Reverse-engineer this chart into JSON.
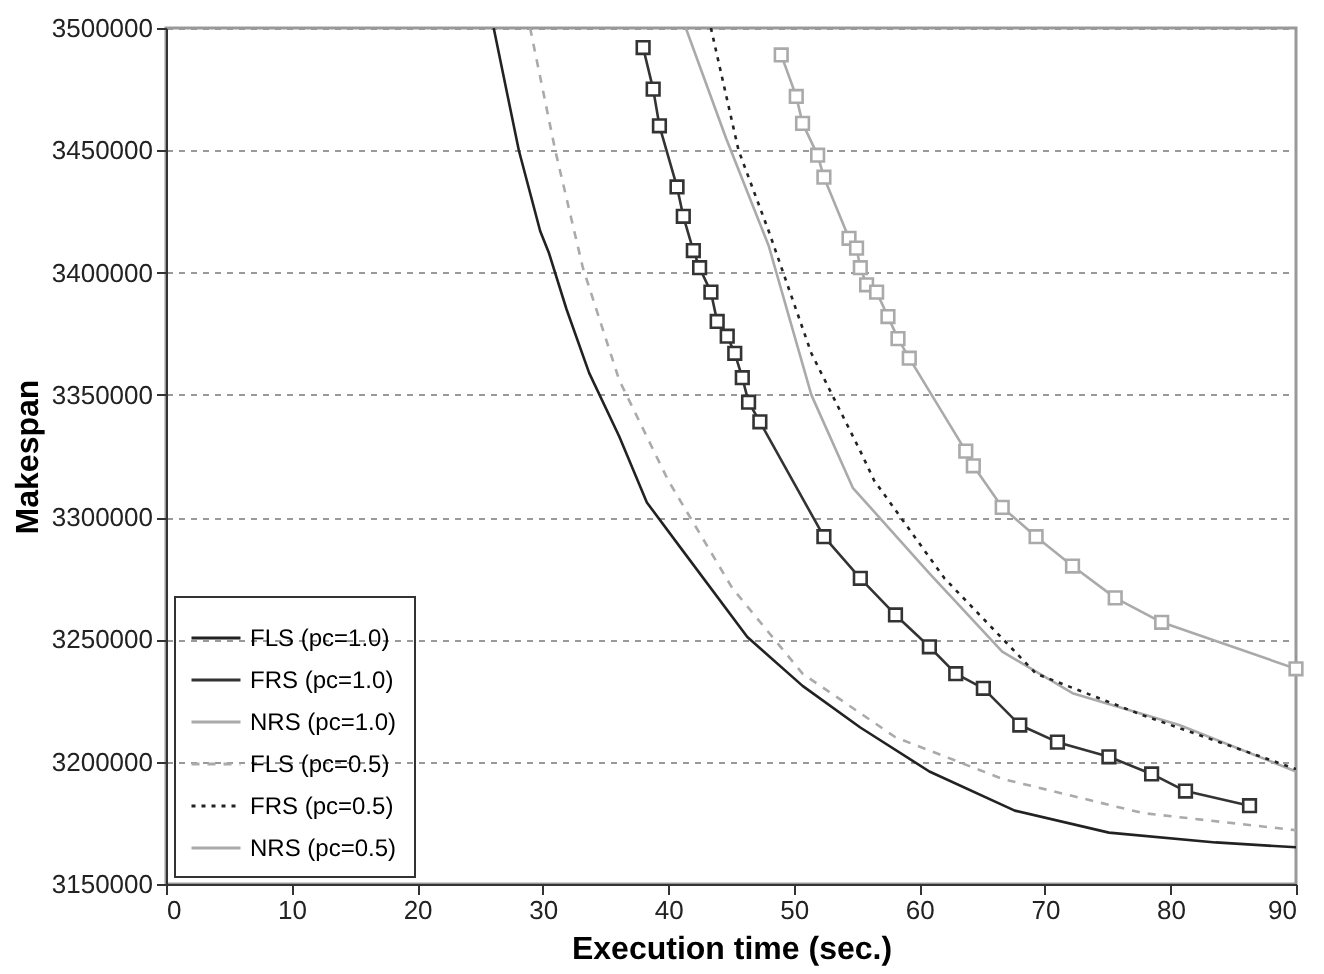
{
  "chart_data": {
    "type": "line",
    "xlabel": "Execution time (sec.)",
    "ylabel": "Makespan",
    "xlim": [
      0,
      90
    ],
    "xticks": [
      0,
      10,
      20,
      30,
      40,
      50,
      60,
      70,
      80,
      90
    ],
    "ylim": [
      3150000,
      3500000
    ],
    "yticks": [
      3150000,
      3200000,
      3250000,
      3300000,
      3350000,
      3400000,
      3450000,
      3500000
    ],
    "grid": "y",
    "legend": "bottom left",
    "series": [
      {
        "name": "FLS (pc=1.0)",
        "color": "#222222",
        "line_style": "solid",
        "marker": "none",
        "x": [
          26.1,
          28.1,
          29.8,
          30.5,
          31.9,
          33.7,
          36.1,
          38.3,
          41.2,
          46.3,
          50.7,
          55.3,
          60.8,
          67.6,
          75.1,
          83.6,
          90
        ],
        "values": [
          3500000,
          3450000,
          3417000,
          3408000,
          3385000,
          3359000,
          3333000,
          3306000,
          3286000,
          3251000,
          3231000,
          3214000,
          3196000,
          3180000,
          3171000,
          3167000,
          3165000
        ]
      },
      {
        "name": "FRS (pc=1.0)",
        "color": "#333333",
        "line_style": "solid",
        "marker": "square",
        "x": [
          38.0,
          38.8,
          39.3,
          40.7,
          41.2,
          42.0,
          42.5,
          43.4,
          43.9,
          44.7,
          45.3,
          45.9,
          46.4,
          47.3,
          52.4,
          55.3,
          58.1,
          60.8,
          62.9,
          65.1,
          68.0,
          71.0,
          75.1,
          78.5,
          81.2,
          86.3
        ],
        "values": [
          3492000,
          3475000,
          3460000,
          3435000,
          3423000,
          3409000,
          3402000,
          3392000,
          3380000,
          3374000,
          3367000,
          3357000,
          3347000,
          3339000,
          3292000,
          3275000,
          3260000,
          3247000,
          3236000,
          3230000,
          3215000,
          3208000,
          3202000,
          3195000,
          3188000,
          3182000
        ]
      },
      {
        "name": "NRS (pc=1.0)",
        "color": "#aaaaaa",
        "line_style": "solid",
        "marker": "none",
        "x": [
          41.4,
          44.6,
          48.0,
          51.4,
          54.7,
          60.8,
          66.6,
          72.2,
          80.7,
          90
        ],
        "values": [
          3500000,
          3455000,
          3411000,
          3350000,
          3312000,
          3277000,
          3245000,
          3228000,
          3215000,
          3196000
        ]
      },
      {
        "name": "FLS (pc=0.5)",
        "color": "#aaaaaa",
        "line_style": "dashed",
        "marker": "none",
        "x": [
          29.0,
          31.0,
          33.2,
          36.1,
          40.0,
          45.1,
          50.7,
          58.1,
          66.6,
          77.8,
          90
        ],
        "values": [
          3500000,
          3450000,
          3402000,
          3356000,
          3315000,
          3271000,
          3236000,
          3210000,
          3193000,
          3179000,
          3172000
        ]
      },
      {
        "name": "FRS (pc=0.5)",
        "color": "#222222",
        "line_style": "dotted",
        "marker": "none",
        "x": [
          43.4,
          45.6,
          48.0,
          51.4,
          55.3,
          56.4,
          62.0,
          69.3,
          77.8,
          90
        ],
        "values": [
          3500000,
          3450000,
          3417000,
          3367000,
          3327000,
          3315000,
          3275000,
          3236000,
          3219000,
          3197000
        ]
      },
      {
        "name": "NRS (pc=0.5)",
        "color": "#aaaaaa",
        "line_style": "solid",
        "marker": "square",
        "x": [
          49.0,
          50.2,
          50.7,
          51.9,
          52.4,
          54.4,
          55.0,
          55.3,
          55.8,
          56.6,
          57.5,
          58.3,
          59.2,
          63.7,
          64.3,
          66.6,
          69.3,
          72.2,
          75.6,
          79.3,
          90
        ],
        "values": [
          3489000,
          3472000,
          3461000,
          3448000,
          3439000,
          3414000,
          3410000,
          3402000,
          3395000,
          3392000,
          3382000,
          3373000,
          3365000,
          3327000,
          3321000,
          3304000,
          3292000,
          3280000,
          3267000,
          3257000,
          3238000
        ]
      }
    ]
  }
}
